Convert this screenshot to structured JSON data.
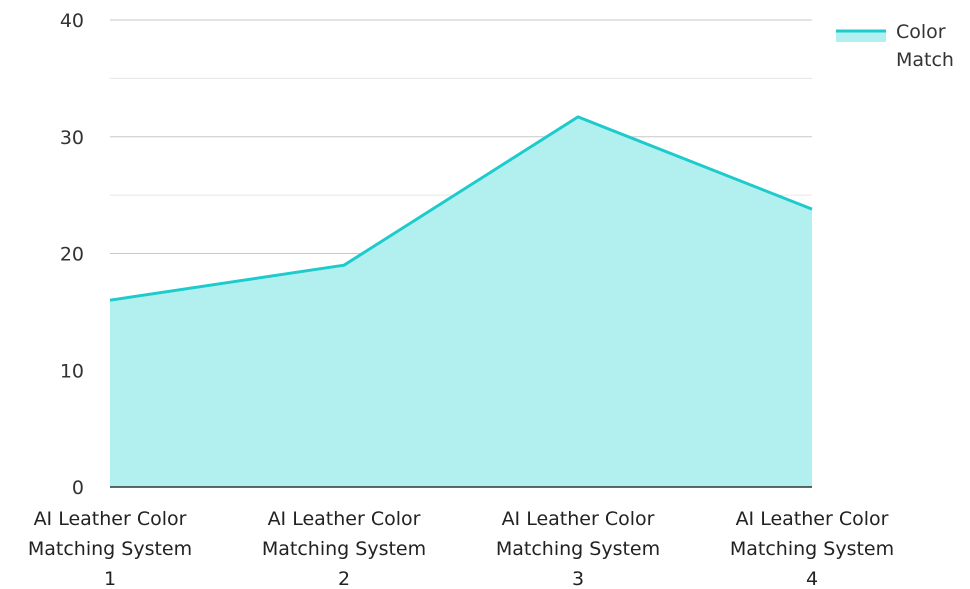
{
  "chart_data": {
    "type": "area",
    "title": "",
    "xlabel": "",
    "ylabel": "",
    "ylim": [
      0,
      40
    ],
    "yticks": [
      "0",
      "10",
      "20",
      "30",
      "40"
    ],
    "grid": true,
    "legend_position": "top-right",
    "categories": [
      [
        "AI Leather Color",
        "Matching System",
        "1"
      ],
      [
        "AI Leather Color",
        "Matching System",
        "2"
      ],
      [
        "AI Leather Color",
        "Matching System",
        "3"
      ],
      [
        "AI Leather Color",
        "Matching System",
        "4"
      ]
    ],
    "series": [
      {
        "name": [
          "Color",
          "Match"
        ],
        "values": [
          16,
          19,
          31.7,
          23.8
        ],
        "line_color": "#1ecbcc",
        "fill_color": "#b2efef"
      }
    ]
  }
}
